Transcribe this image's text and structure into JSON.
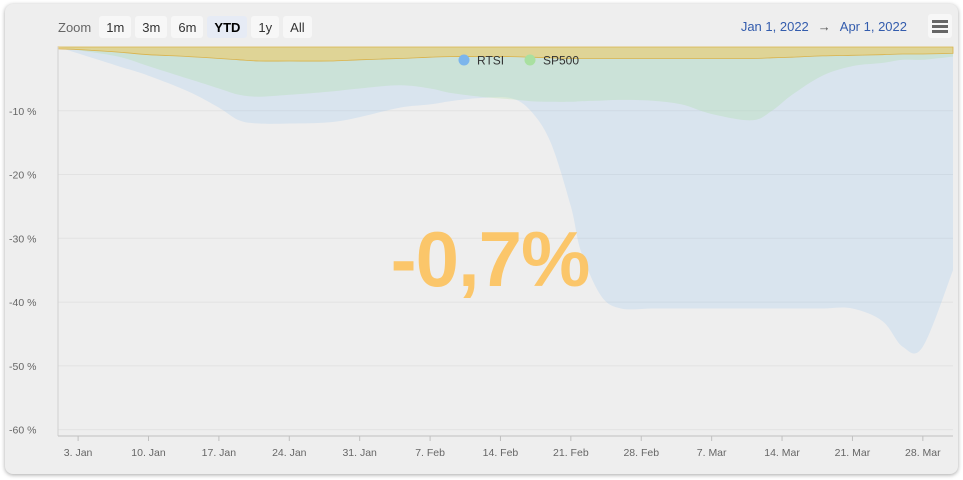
{
  "toolbar": {
    "zoom_label": "Zoom",
    "buttons": [
      "1m",
      "3m",
      "6m",
      "YTD",
      "1y",
      "All"
    ],
    "active": "YTD",
    "range_from": "Jan 1, 2022",
    "range_arrow": "→",
    "range_to": "Apr 1, 2022",
    "menu_icon": "hamburger-menu-icon"
  },
  "headline_value": "-0,7%",
  "colors": {
    "rtsi": "#7cb5ec",
    "sp500": "#a9e0a0",
    "band": "#f0c860",
    "headline": "#fcc463"
  },
  "chart_data": {
    "type": "area",
    "x": [
      "2022-01-01",
      "2022-01-03",
      "2022-01-07",
      "2022-01-10",
      "2022-01-14",
      "2022-01-17",
      "2022-01-19",
      "2022-01-21",
      "2022-01-24",
      "2022-01-28",
      "2022-01-31",
      "2022-02-04",
      "2022-02-07",
      "2022-02-09",
      "2022-02-12",
      "2022-02-15",
      "2022-02-17",
      "2022-02-19",
      "2022-02-21",
      "2022-02-22",
      "2022-02-24",
      "2022-02-26",
      "2022-03-01",
      "2022-03-04",
      "2022-03-07",
      "2022-03-11",
      "2022-03-13",
      "2022-03-15",
      "2022-03-18",
      "2022-03-21",
      "2022-03-24",
      "2022-03-26",
      "2022-03-28",
      "2022-03-31"
    ],
    "series": [
      {
        "name": "RTSI",
        "values": [
          0,
          -1,
          -3,
          -4.5,
          -7,
          -9.5,
          -11.5,
          -12,
          -12,
          -11.8,
          -11,
          -9.5,
          -9,
          -8.5,
          -8,
          -8,
          -10,
          -15,
          -25,
          -32,
          -39,
          -41,
          -41,
          -41,
          -41,
          -41,
          -41,
          -41,
          -41,
          -41,
          -43,
          -47,
          -47,
          -35
        ]
      },
      {
        "name": "SP500",
        "values": [
          0,
          -0.5,
          -1.5,
          -3,
          -5,
          -6.5,
          -7.5,
          -7.8,
          -7.5,
          -7,
          -6.5,
          -6,
          -6.5,
          -7.2,
          -7.8,
          -8.2,
          -8.5,
          -8.6,
          -8.6,
          -8.5,
          -8.4,
          -8.3,
          -8.4,
          -9,
          -10.5,
          -11.5,
          -10,
          -7.5,
          -4.5,
          -3,
          -2.5,
          -2,
          -2,
          -1.5
        ]
      }
    ],
    "band": [
      -0.3,
      -0.4,
      -0.8,
      -1.2,
      -1.5,
      -1.8,
      -2,
      -2.2,
      -2.2,
      -2.2,
      -2,
      -1.8,
      -1.6,
      -1.5,
      -1.5,
      -1.5,
      -1.6,
      -1.7,
      -1.8,
      -1.8,
      -1.8,
      -1.8,
      -1.8,
      -1.8,
      -1.8,
      -1.8,
      -1.7,
      -1.6,
      -1.4,
      -1.3,
      -1.2,
      -1.1,
      -1.1,
      -1
    ],
    "ylim": [
      -61,
      0
    ],
    "y_ticks": [
      -10,
      -20,
      -30,
      -40,
      -50,
      -60
    ],
    "y_tick_labels": [
      "-10 %",
      "-20 %",
      "-30 %",
      "-40 %",
      "-50 %",
      "-60 %"
    ],
    "x_ticks": [
      "2022-01-03",
      "2022-01-10",
      "2022-01-17",
      "2022-01-24",
      "2022-01-31",
      "2022-02-07",
      "2022-02-14",
      "2022-02-21",
      "2022-02-28",
      "2022-03-07",
      "2022-03-14",
      "2022-03-21",
      "2022-03-28"
    ],
    "x_tick_labels": [
      "3. Jan",
      "10. Jan",
      "17. Jan",
      "24. Jan",
      "31. Jan",
      "7. Feb",
      "14. Feb",
      "21. Feb",
      "28. Feb",
      "7. Mar",
      "14. Mar",
      "21. Mar",
      "28. Mar"
    ],
    "legend": [
      "RTSI",
      "SP500"
    ],
    "legend_position": "top-center",
    "grid": true
  }
}
